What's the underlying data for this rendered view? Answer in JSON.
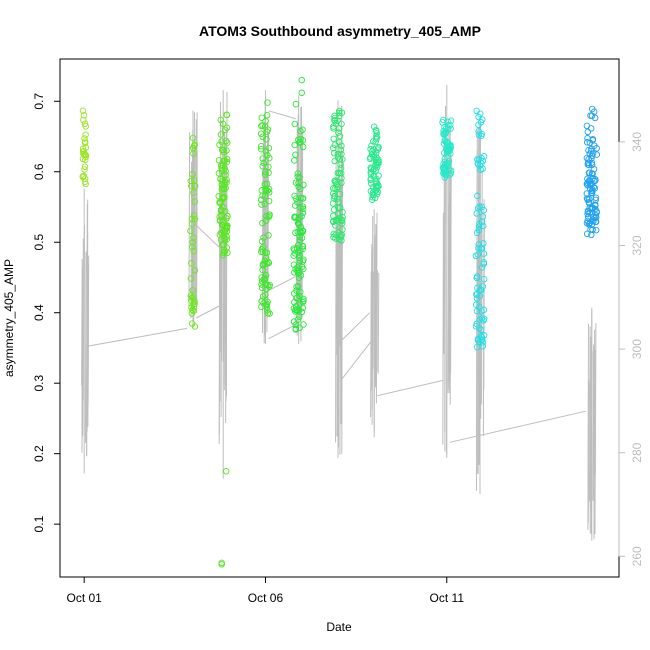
{
  "chart_data": {
    "type": "scatter",
    "title": "ATOM3 Southbound asymmetry_405_AMP",
    "xlabel": "Date",
    "ylabel": "asymmetry_405_AMP",
    "x_ticks": [
      "Oct 01",
      "Oct 06",
      "Oct 11"
    ],
    "y_ticks": [
      "0.1",
      "0.2",
      "0.3",
      "0.4",
      "0.5",
      "0.6",
      "0.7"
    ],
    "y2_ticks": [
      "260",
      "280",
      "300",
      "320",
      "340"
    ],
    "xlim": [
      "2023-09-30T08:00",
      "2023-10-15T18:00"
    ],
    "ylim": [
      0.025,
      0.76
    ],
    "y2lim": [
      256,
      356
    ],
    "grid": false,
    "colors": {
      "frame": "#000000",
      "secondary_series": "#bdbdbd",
      "scatter_start": "#9be62a",
      "scatter_end": "#1e90ff"
    },
    "scatter_clusters": [
      {
        "date": "2023-10-01T00:00",
        "spread_days": 0.05,
        "ymin": 0.58,
        "ymax": 0.69,
        "n": 30,
        "color": "#9be62a"
      },
      {
        "date": "2023-10-04T00:00",
        "spread_days": 0.07,
        "ymin": 0.38,
        "ymax": 0.655,
        "n": 40,
        "color": "#6ce81a"
      },
      {
        "date": "2023-10-04T20:00",
        "spread_days": 0.12,
        "ymin": 0.48,
        "ymax": 0.69,
        "n": 90,
        "color": "#55e81c"
      },
      {
        "date": "2023-10-06T00:00",
        "spread_days": 0.12,
        "ymin": 0.39,
        "ymax": 0.7,
        "n": 90,
        "color": "#3de82a"
      },
      {
        "date": "2023-10-06T22:00",
        "spread_days": 0.14,
        "ymin": 0.37,
        "ymax": 0.7,
        "n": 110,
        "color": "#2ae83a"
      },
      {
        "date": "2023-10-08T00:00",
        "spread_days": 0.14,
        "ymin": 0.5,
        "ymax": 0.69,
        "n": 80,
        "color": "#2ae86a"
      },
      {
        "date": "2023-10-09T00:00",
        "spread_days": 0.12,
        "ymin": 0.56,
        "ymax": 0.665,
        "n": 70,
        "color": "#2ae88c"
      },
      {
        "date": "2023-10-11T00:00",
        "spread_days": 0.12,
        "ymin": 0.59,
        "ymax": 0.675,
        "n": 70,
        "color": "#29e8c9"
      },
      {
        "date": "2023-10-11T22:00",
        "spread_days": 0.12,
        "ymin": 0.35,
        "ymax": 0.69,
        "n": 80,
        "color": "#1fe0e6"
      },
      {
        "date": "2023-10-15T00:00",
        "spread_days": 0.14,
        "ymin": 0.51,
        "ymax": 0.7,
        "n": 100,
        "color": "#1ea0f0"
      }
    ],
    "scatter_extra_points": [
      {
        "date": "2023-10-04T19:00",
        "y": 0.045,
        "color": "#55e81c"
      },
      {
        "date": "2023-10-04T19:00",
        "y": 0.043,
        "color": "#55e81c"
      },
      {
        "date": "2023-10-04T22:00",
        "y": 0.175,
        "color": "#55e81c"
      },
      {
        "date": "2023-10-07T00:00",
        "y": 0.73,
        "color": "#2ae83a"
      },
      {
        "date": "2023-10-07T00:00",
        "y": 0.712,
        "color": "#2ae83a"
      }
    ],
    "secondary_clusters": [
      {
        "date": "2023-10-01T00:00",
        "y2min": 276,
        "y2max": 331
      },
      {
        "date": "2023-10-04T00:00",
        "y2min": 304,
        "y2max": 346
      },
      {
        "date": "2023-10-04T20:00",
        "y2min": 275,
        "y2max": 350
      },
      {
        "date": "2023-10-06T00:00",
        "y2min": 301,
        "y2max": 350
      },
      {
        "date": "2023-10-06T22:00",
        "y2min": 301,
        "y2max": 349
      },
      {
        "date": "2023-10-08T00:00",
        "y2min": 279,
        "y2max": 348
      },
      {
        "date": "2023-10-09T00:00",
        "y2min": 283,
        "y2max": 327
      },
      {
        "date": "2023-10-11T00:00",
        "y2min": 279,
        "y2max": 351
      },
      {
        "date": "2023-10-11T22:00",
        "y2min": 272,
        "y2max": 345
      },
      {
        "date": "2023-10-15T00:00",
        "y2min": 263,
        "y2max": 308
      }
    ],
    "secondary_connectors": [
      [
        "2023-10-01T01:00",
        300.5,
        "2023-10-03T20:00",
        304.0
      ],
      [
        "2023-10-04T02:00",
        306.0,
        "2023-10-04T22:00",
        309.0
      ],
      [
        "2023-10-04T00:00",
        324.5,
        "2023-10-04T18:00",
        319.5
      ],
      [
        "2023-10-06T02:00",
        302.0,
        "2023-10-06T22:00",
        305.0
      ],
      [
        "2023-10-06T00:00",
        311.0,
        "2023-10-06T20:00",
        314.0
      ],
      [
        "2023-10-08T02:00",
        294.0,
        "2023-10-08T22:00",
        301.5
      ],
      [
        "2023-10-08T00:00",
        301.0,
        "2023-10-08T21:00",
        307.0
      ],
      [
        "2023-10-09T02:00",
        291.0,
        "2023-10-10T22:00",
        294.0
      ],
      [
        "2023-10-11T02:00",
        282.0,
        "2023-10-14T20:00",
        288.0
      ],
      [
        "2023-10-06T02:00",
        346.0,
        "2023-10-06T20:00",
        344.5
      ]
    ]
  }
}
